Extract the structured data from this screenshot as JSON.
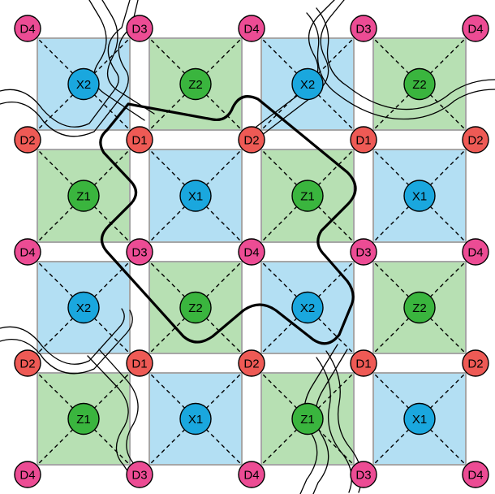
{
  "colors": {
    "x_plaquette": "#b3dff3",
    "z_plaquette": "#b7e0b3",
    "plaquette_edge": "#a6a6a6",
    "x_node": "#1aa7de",
    "z_node": "#3ab53e",
    "d_pink": "#ec4c94",
    "d_red": "#ee5a55",
    "line": "#000000",
    "background": "#ffffff"
  },
  "grid": {
    "plaquette_rows": [
      [
        "X",
        "Z",
        "X",
        "Z"
      ],
      [
        "Z",
        "X",
        "Z",
        "X"
      ],
      [
        "X",
        "Z",
        "X",
        "Z"
      ],
      [
        "Z",
        "X",
        "Z",
        "X"
      ]
    ],
    "plaquette_labels": [
      [
        "X2",
        "Z2",
        "X2",
        "Z2"
      ],
      [
        "Z1",
        "X1",
        "Z1",
        "X1"
      ],
      [
        "X2",
        "Z2",
        "X2",
        "Z2"
      ],
      [
        "Z1",
        "X1",
        "Z1",
        "X1"
      ]
    ],
    "node_rows": [
      [
        "D4",
        "D3",
        "D4",
        "D3",
        "D4"
      ],
      [
        "D2",
        "D1",
        "D2",
        "D1",
        "D2"
      ],
      [
        "D4",
        "D3",
        "D4",
        "D3",
        "D4"
      ],
      [
        "D2",
        "D1",
        "D2",
        "D1",
        "D2"
      ],
      [
        "D4",
        "D3",
        "D4",
        "D3",
        "D4"
      ]
    ],
    "node_color_keys": [
      "d_pink",
      "d_red",
      "d_pink",
      "d_red",
      "d_pink"
    ]
  }
}
